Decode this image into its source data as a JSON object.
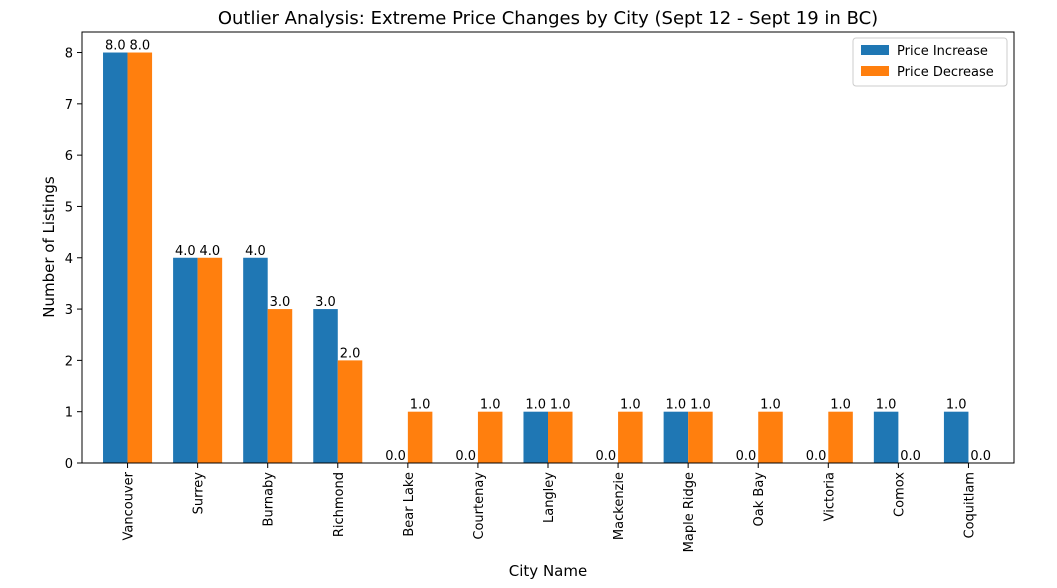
{
  "chart_data": {
    "type": "bar",
    "title": "Outlier Analysis: Extreme Price Changes by City (Sept 12 - Sept 19 in BC)",
    "xlabel": "City Name",
    "ylabel": "Number of Listings",
    "ylim": [
      0,
      8.4
    ],
    "yticks": [
      0,
      1,
      2,
      3,
      4,
      5,
      6,
      7,
      8
    ],
    "grid": false,
    "legend_position": "top-right",
    "categories": [
      "Vancouver",
      "Surrey",
      "Burnaby",
      "Richmond",
      "Bear Lake",
      "Courtenay",
      "Langley",
      "Mackenzie",
      "Maple Ridge",
      "Oak Bay",
      "Victoria",
      "Comox",
      "Coquitlam"
    ],
    "series": [
      {
        "name": "Price Increase",
        "color": "#1f77b4",
        "values": [
          8,
          4,
          4,
          3,
          0,
          0,
          1,
          0,
          1,
          0,
          0,
          1,
          1
        ]
      },
      {
        "name": "Price Decrease",
        "color": "#ff7f0e",
        "values": [
          8,
          4,
          3,
          2,
          1,
          1,
          1,
          1,
          1,
          1,
          1,
          0,
          0
        ]
      }
    ]
  }
}
